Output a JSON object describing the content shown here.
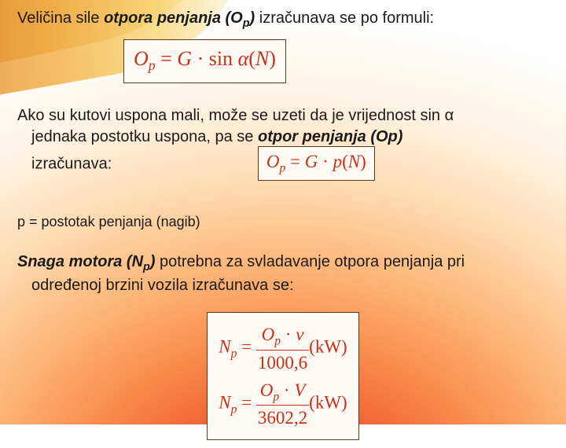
{
  "colors": {
    "formula_border": "#5a3a1a",
    "formula_text": "#c92f1b",
    "formula_bg": "#fffaf4",
    "body_text": "#1a1a1a",
    "bg_gradient_stops": [
      "#e63b1f",
      "#f0572e",
      "#f88b4c",
      "#fdb87a",
      "#feddb5",
      "#fff4e6",
      "#ffffff"
    ]
  },
  "typography": {
    "body_font": "Arial",
    "body_size_pt": 15,
    "formula_font": "Times New Roman",
    "formula_size_pt_main": 20,
    "formula_size_pt_small": 17
  },
  "para1": {
    "lead": "Veličina sile ",
    "term": "otpora penjanja (O",
    "term_sub": "p",
    "term_close": ")",
    "tail": " izračunava se po formuli:"
  },
  "formula1": {
    "lhs_var": "O",
    "lhs_sub": "p",
    "eq": " = ",
    "rhs_a": "G",
    "dot": " · ",
    "rhs_b": "sin ",
    "rhs_c": "α",
    "unit_open": "(",
    "unit": "N",
    "unit_close": ")"
  },
  "para2": {
    "line1": "Ako su kutovi uspona mali, može se uzeti da je vrijednost sin α",
    "line2a": "jednaka postotku uspona, pa se ",
    "line2_term": "otpor penjanja (Op)",
    "line3": "izračunava:"
  },
  "formula2": {
    "lhs_var": "O",
    "lhs_sub": "p",
    "eq": " = ",
    "rhs_a": "G",
    "dot": " · ",
    "rhs_b": "p",
    "unit_open": "(",
    "unit": "N",
    "unit_close": ")"
  },
  "para3": "p = postotak penjanja (nagib)",
  "para4": {
    "term": "Snaga motora (N",
    "term_sub": "p",
    "term_close": ")",
    "tail1": " potrebna za svladavanje otpora penjanja pri",
    "tail2": "određenoj brzini vozila izračunava se:"
  },
  "formula3": {
    "row1": {
      "lhs_var": "N",
      "lhs_sub": "p",
      "eq": " = ",
      "num_a": "O",
      "num_sub": "p",
      "num_dot": " · ",
      "num_b": "v",
      "den": "1000,6",
      "unit": "(kW)"
    },
    "row2": {
      "lhs_var": "N",
      "lhs_sub": "p",
      "eq": " = ",
      "num_a": "O",
      "num_sub": "p",
      "num_dot": " · ",
      "num_b": "V",
      "den": "3602,2",
      "unit": "(kW)"
    }
  }
}
